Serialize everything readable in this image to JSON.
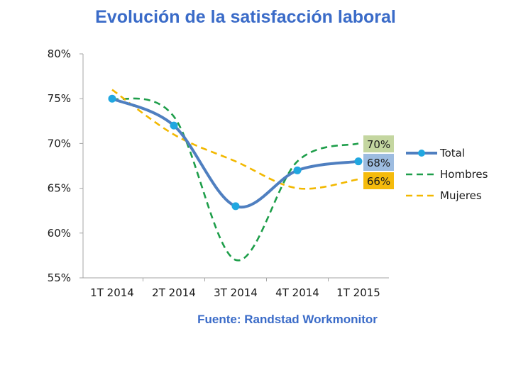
{
  "chart_data": {
    "type": "line",
    "title": "Evolución de la satisfacción laboral",
    "source": "Fuente: Randstad Workmonitor",
    "categories": [
      "1T 2014",
      "2T 2014",
      "3T 2014",
      "4T 2014",
      "1T 2015"
    ],
    "ylim": [
      55,
      80
    ],
    "yticks": [
      55,
      60,
      65,
      70,
      75,
      80
    ],
    "ytick_labels": [
      "55%",
      "60%",
      "65%",
      "70%",
      "75%",
      "80%"
    ],
    "series": [
      {
        "name": "Total",
        "values": [
          75,
          72,
          63,
          67,
          68
        ],
        "color": "#4f7fc0",
        "style": "solid",
        "markers": true,
        "marker_color": "#21a7e0"
      },
      {
        "name": "Hombres",
        "values": [
          75,
          73,
          57,
          68,
          70
        ],
        "color": "#1e9e4a",
        "style": "dashed"
      },
      {
        "name": "Mujeres",
        "values": [
          76,
          71,
          68,
          65,
          66
        ],
        "color": "#f2b800",
        "style": "dashed"
      }
    ],
    "end_labels": [
      {
        "series": "Hombres",
        "text": "70%",
        "bg": "#c4d6a0"
      },
      {
        "series": "Total",
        "text": "68%",
        "bg": "#9dbce0"
      },
      {
        "series": "Mujeres",
        "text": "66%",
        "bg": "#f5bb0c"
      }
    ],
    "legend": {
      "position": "right"
    }
  }
}
